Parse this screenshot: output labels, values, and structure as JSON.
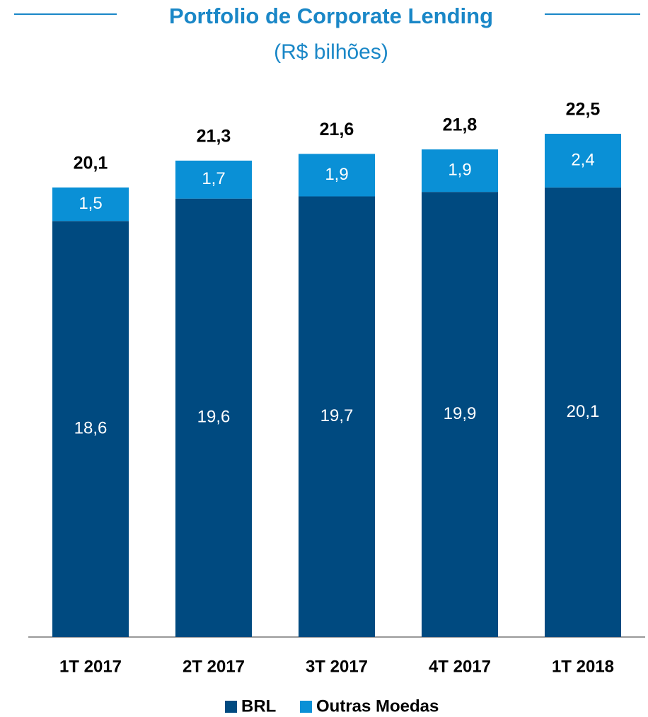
{
  "chart_data": {
    "type": "stacked_bar",
    "title": "Portfolio de Corporate Lending",
    "subtitle": "(R$ bilhões)",
    "categories": [
      "1T 2017",
      "2T 2017",
      "3T 2017",
      "4T 2017",
      "1T 2018"
    ],
    "series": [
      {
        "name": "BRL",
        "color": "#004a80",
        "values": [
          18.6,
          19.6,
          19.7,
          19.9,
          20.1
        ],
        "value_labels": [
          "18,6",
          "19,6",
          "19,7",
          "19,9",
          "20,1"
        ]
      },
      {
        "name": "Outras Moedas",
        "color": "#0a90d6",
        "values": [
          1.5,
          1.7,
          1.9,
          1.9,
          2.4
        ],
        "value_labels": [
          "1,5",
          "1,7",
          "1,9",
          "1,9",
          "2,4"
        ]
      }
    ],
    "totals": {
      "values": [
        20.1,
        21.3,
        21.6,
        21.8,
        22.5
      ],
      "value_labels": [
        "20,1",
        "21,3",
        "21,6",
        "21,8",
        "22,5"
      ]
    }
  }
}
